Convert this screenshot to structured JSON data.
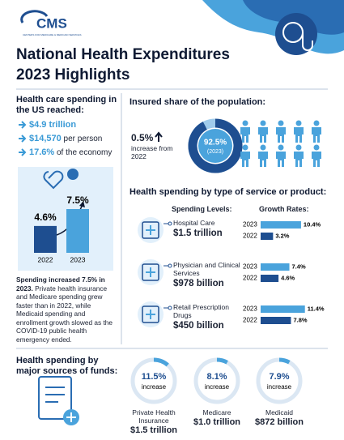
{
  "header": {
    "logo": "CMS",
    "logo_tagline": "CENTERS FOR MEDICARE & MEDICAID SERVICES",
    "title_lines": [
      "National Health Expenditures",
      "2023 Highlights"
    ]
  },
  "spending": {
    "heading": "Health care spending in the US reached:",
    "items": [
      {
        "value": "$4.9 trillion"
      },
      {
        "value": "$14,570",
        "label": "per person"
      },
      {
        "value": "17.6%",
        "label": "of the economy"
      }
    ]
  },
  "growth_chart": {
    "bars": [
      {
        "category": "2022",
        "value": 4.6,
        "value_label": "4.6%"
      },
      {
        "category": "2023",
        "value": 7.5,
        "value_label": "7.5%"
      }
    ],
    "text_bold": "Spending increased 7.5% in 2023.",
    "text": "Private health insurance and Medicare spending grew faster than in 2022, while Medicaid spending and enrollment growth slowed as the COVID-19 public health emergency ended."
  },
  "insured": {
    "heading": "Insured share of the population:",
    "change": "0.5%",
    "change_text": "increase from 2022",
    "share": 92.5,
    "share_label": "92.5%",
    "year": "(2023)"
  },
  "by_service": {
    "heading": "Health spending by type of service or product:",
    "levels_heading": "Spending Levels:",
    "rates_heading": "Growth Rates:",
    "services": [
      {
        "name": "Hospital Care",
        "amount": "$1.5 trillion",
        "rates": [
          {
            "year": "2023",
            "value": 10.4,
            "label": "10.4%"
          },
          {
            "year": "2022",
            "value": 3.2,
            "label": "3.2%"
          }
        ]
      },
      {
        "name": "Physician and Clinical Services",
        "amount": "$978 billion",
        "rates": [
          {
            "year": "2023",
            "value": 7.4,
            "label": "7.4%"
          },
          {
            "year": "2022",
            "value": 4.6,
            "label": "4.6%"
          }
        ]
      },
      {
        "name": "Retail Prescription Drugs",
        "amount": "$450 billion",
        "rates": [
          {
            "year": "2023",
            "value": 11.4,
            "label": "11.4%"
          },
          {
            "year": "2022",
            "value": 7.8,
            "label": "7.8%"
          }
        ]
      }
    ]
  },
  "by_source": {
    "heading": "Health spending by major sources of funds:",
    "sources": [
      {
        "name": "Private Health Insurance",
        "amount": "$1.5 trillion",
        "growth": 11.5,
        "growth_label": "11.5%",
        "growth_text": "increase"
      },
      {
        "name": "Medicare",
        "amount": "$1.0 trillion",
        "growth": 8.1,
        "growth_label": "8.1%",
        "growth_text": "increase"
      },
      {
        "name": "Medicaid",
        "amount": "$872 billion",
        "growth": 7.9,
        "growth_label": "7.9%",
        "growth_text": "increase"
      }
    ]
  }
}
